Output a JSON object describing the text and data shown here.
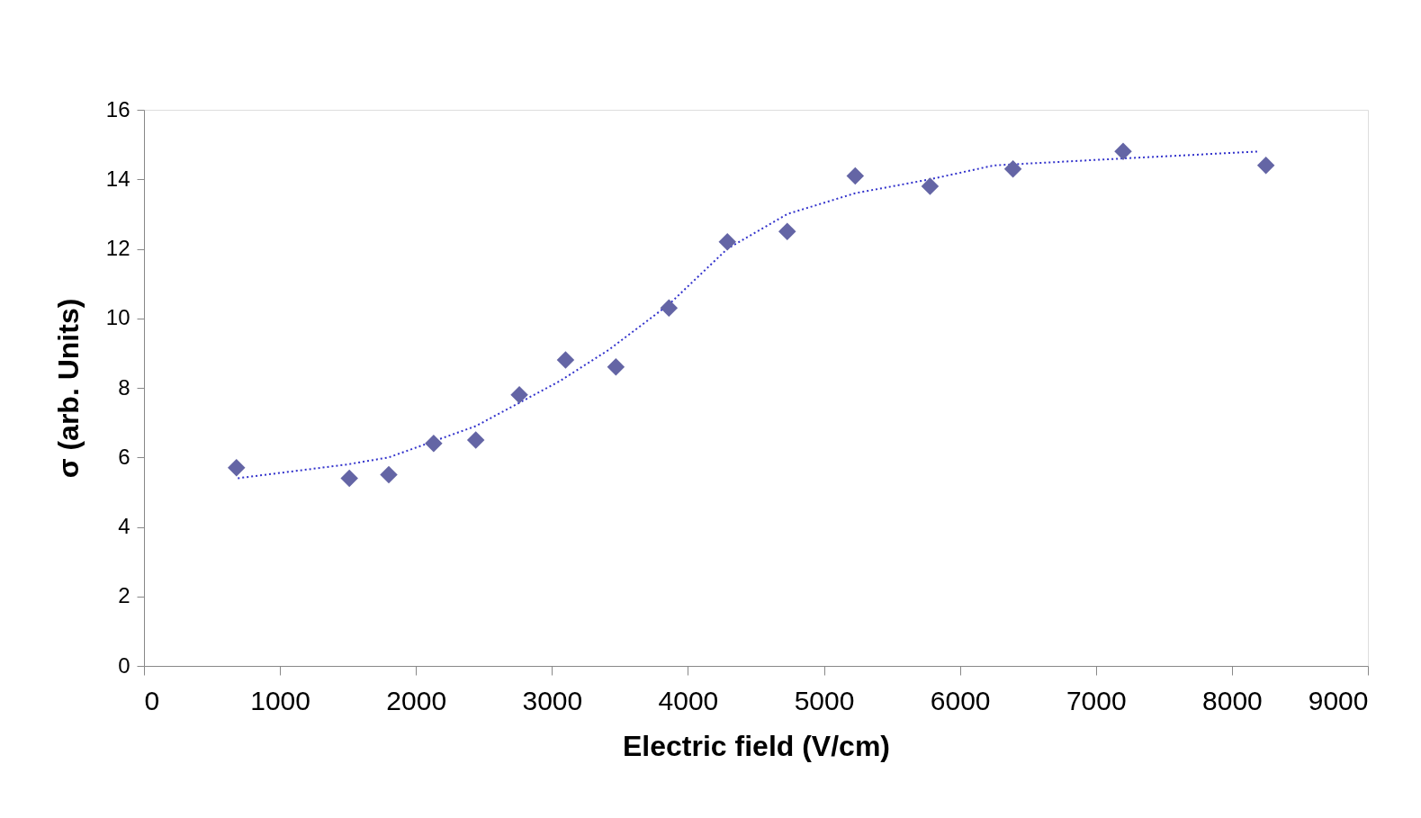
{
  "chart_data": {
    "type": "scatter",
    "xlabel": "Electric field (V/cm)",
    "ylabel": "σ (arb. Units)",
    "xlim": [
      0,
      9000
    ],
    "xticks": [
      0,
      1000,
      2000,
      3000,
      4000,
      5000,
      6000,
      7000,
      8000,
      9000
    ],
    "ylim": [
      0,
      16
    ],
    "yticks": [
      0,
      2,
      4,
      6,
      8,
      10,
      12,
      14,
      16
    ],
    "grid": false,
    "series": [
      {
        "color": "#6465a5",
        "marker": "diamond",
        "x": [
          680,
          1510,
          1800,
          2130,
          2440,
          2760,
          3100,
          3470,
          3860,
          4290,
          4730,
          5230,
          5780,
          6390,
          7200,
          8250
        ],
        "values": [
          5.7,
          5.4,
          5.5,
          6.4,
          6.5,
          7.8,
          8.8,
          8.6,
          10.3,
          12.2,
          12.5,
          14.1,
          13.8,
          14.3,
          14.8,
          14.4
        ]
      },
      {
        "type": "line",
        "color": "#3333cc",
        "line_style": "dotted",
        "marker": "none",
        "x": [
          690,
          1500,
          1800,
          2440,
          3060,
          3420,
          3860,
          4290,
          4730,
          5230,
          5780,
          6250,
          7200,
          8200
        ],
        "values": [
          5.4,
          5.8,
          6.0,
          6.9,
          8.2,
          9.1,
          10.4,
          12.0,
          13.0,
          13.6,
          14.0,
          14.4,
          14.6,
          14.8
        ]
      }
    ]
  }
}
